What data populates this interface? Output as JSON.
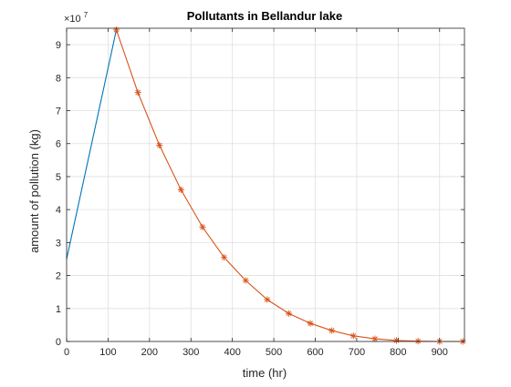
{
  "chart_data": {
    "type": "line",
    "title": "Pollutants in Bellandur lake",
    "xlabel": "time (hr)",
    "ylabel": "amount of pollution (kg)",
    "y_exponent_label": "×10",
    "y_exponent_power": "7",
    "xlim": [
      0,
      960
    ],
    "ylim": [
      0,
      9.5
    ],
    "x_ticks": [
      0,
      100,
      200,
      300,
      400,
      500,
      600,
      700,
      800,
      900
    ],
    "y_ticks": [
      0,
      1,
      2,
      3,
      4,
      5,
      6,
      7,
      8,
      9
    ],
    "grid": true,
    "y_scale_factor": 10000000,
    "series": [
      {
        "color": "#0072BD",
        "marker": "none",
        "x": [
          0,
          120
        ],
        "y": [
          2.5,
          9.45
        ]
      },
      {
        "color": "#D95319",
        "marker": "*",
        "x": [
          120,
          172,
          224,
          276,
          328,
          380,
          432,
          484,
          536,
          588,
          640,
          692,
          744,
          796,
          848,
          900,
          956
        ],
        "y": [
          9.45,
          7.55,
          5.95,
          4.6,
          3.47,
          2.55,
          1.85,
          1.27,
          0.85,
          0.55,
          0.33,
          0.17,
          0.08,
          0.03,
          0.01,
          0.0,
          0.0
        ]
      }
    ]
  }
}
